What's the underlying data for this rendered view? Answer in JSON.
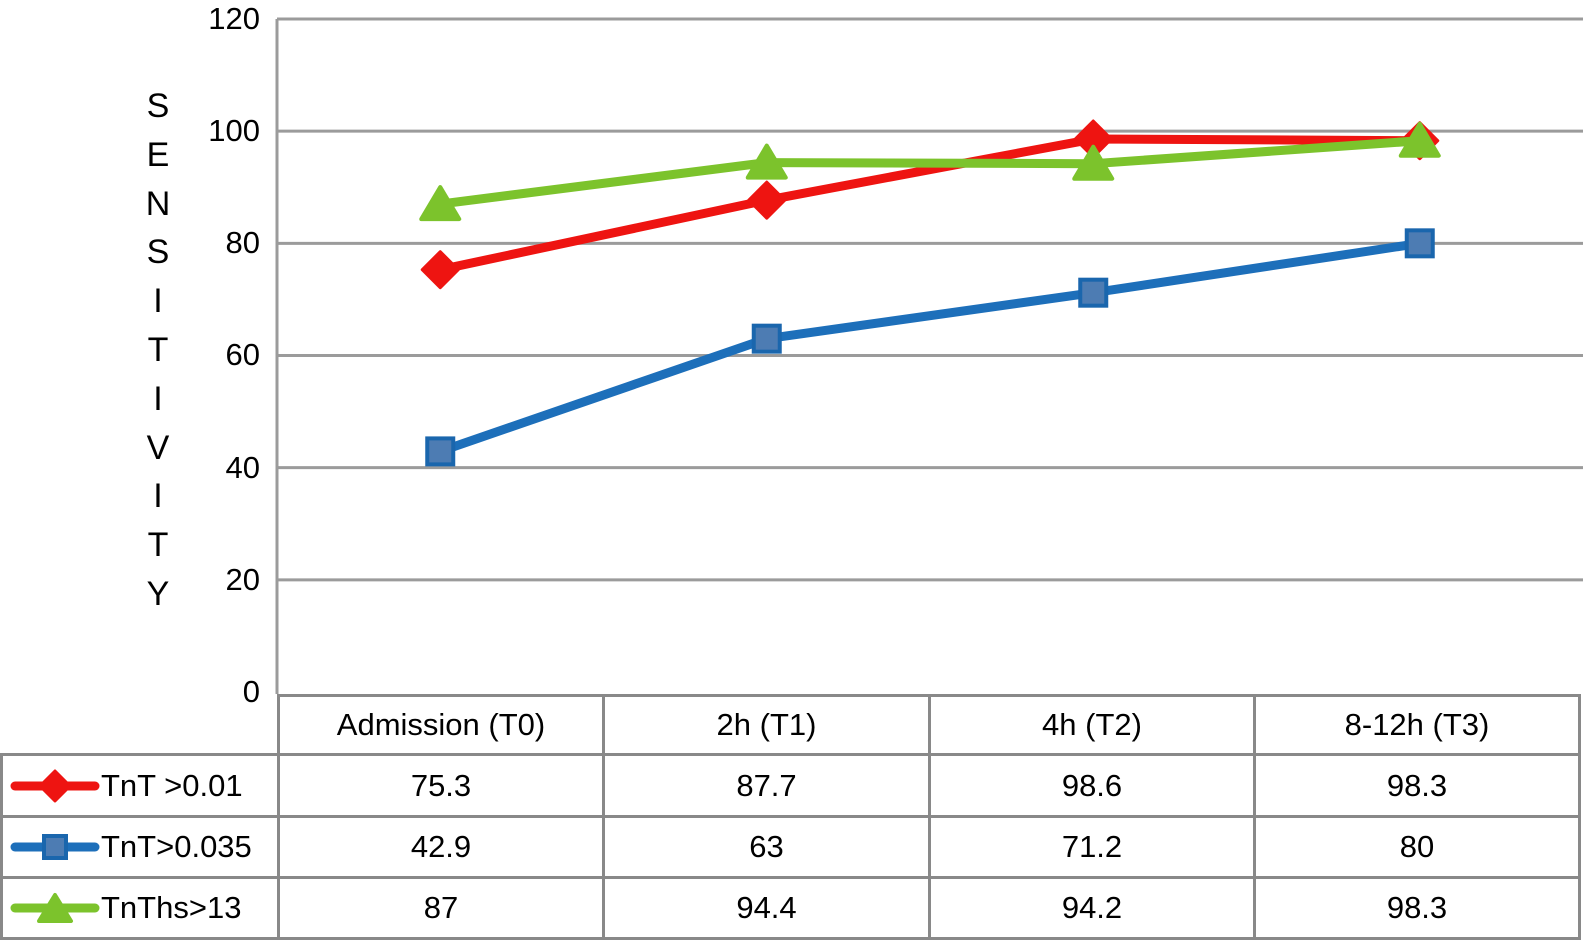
{
  "chart_data": {
    "type": "line",
    "title": "",
    "xlabel": "",
    "ylabel": "SENSITIVITY",
    "ylim": [
      0,
      120
    ],
    "yticks": [
      0,
      20,
      40,
      60,
      80,
      100,
      120
    ],
    "grid": "horizontal",
    "legend_position": "table-left",
    "categories": [
      "Admission (T0)",
      "2h (T1)",
      "4h (T2)",
      "8-12h (T3)"
    ],
    "series": [
      {
        "name": "TnT >0.01",
        "marker": "diamond",
        "color": "#ee1411",
        "marker_fill": "#ee1411",
        "marker_stroke": "#ee1411",
        "values": [
          75.3,
          87.7,
          98.6,
          98.3
        ]
      },
      {
        "name": "TnT>0.035",
        "marker": "square",
        "color": "#1d6fba",
        "marker_fill": "#4d7cb3",
        "marker_stroke": "#1a66ad",
        "values": [
          42.9,
          63,
          71.2,
          80
        ]
      },
      {
        "name": "TnThs>13",
        "marker": "triangle",
        "color": "#7cc32c",
        "marker_fill": "#7cc32c",
        "marker_stroke": "#7cc32c",
        "values": [
          87,
          94.4,
          94.2,
          98.3
        ]
      }
    ]
  },
  "colors": {
    "gridline": "#9b9b9b",
    "axis_line": "#9b9b9b",
    "table_border": "#898989",
    "background": "#ffffff",
    "text": "#000000"
  }
}
